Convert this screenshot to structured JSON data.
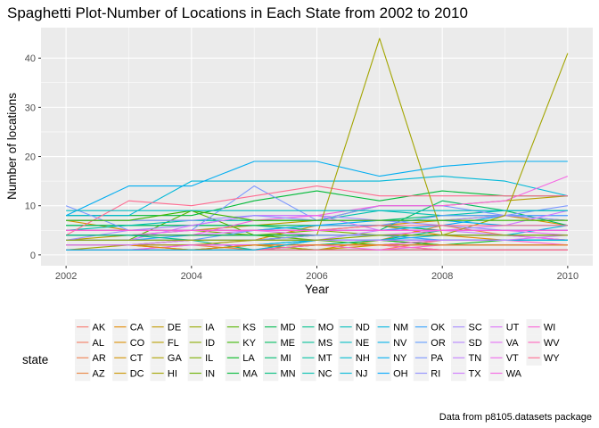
{
  "chart_data": {
    "type": "line",
    "title": "Spaghetti Plot-Number of Locations in Each State from 2002 to 2010",
    "xlabel": "Year",
    "ylabel": "Number of locations",
    "xlim": [
      2001.6,
      2010.4
    ],
    "ylim": [
      -2.2,
      46.2
    ],
    "x_ticks": [
      2002,
      2004,
      2006,
      2008,
      2010
    ],
    "x_tick_labels": [
      "2002",
      "2004",
      "2006",
      "2008",
      "2010"
    ],
    "y_ticks": [
      0,
      10,
      20,
      30,
      40
    ],
    "y_tick_labels": [
      "0",
      "10",
      "20",
      "30",
      "40"
    ],
    "x": [
      2002,
      2003,
      2004,
      2005,
      2006,
      2007,
      2008,
      2009,
      2010
    ],
    "grid": true,
    "legend": {
      "title": "state",
      "position": "bottom",
      "rows": 4
    },
    "series": [
      {
        "name": "AK",
        "color": "#F8766D",
        "values": [
          1,
          1,
          1,
          1,
          1,
          1,
          1,
          1,
          1
        ]
      },
      {
        "name": "AL",
        "color": "#F47A5F",
        "values": [
          1,
          1,
          1,
          1,
          1,
          1,
          3,
          3,
          3
        ]
      },
      {
        "name": "AR",
        "color": "#EF7F4F",
        "values": [
          1,
          1,
          1,
          1,
          2,
          3,
          3,
          3,
          3
        ]
      },
      {
        "name": "AZ",
        "color": "#E9843F",
        "values": [
          2,
          2,
          2,
          1,
          3,
          3,
          6,
          4,
          3
        ]
      },
      {
        "name": "CA",
        "color": "#E38900",
        "values": [
          2,
          2,
          3,
          3,
          6,
          6,
          4,
          3,
          3
        ]
      },
      {
        "name": "CO",
        "color": "#DC8D00",
        "values": [
          4,
          4,
          4,
          4,
          4,
          4,
          4,
          4,
          4
        ]
      },
      {
        "name": "CT",
        "color": "#D49200",
        "values": [
          7,
          5,
          5,
          5,
          5,
          6,
          7,
          8,
          6
        ]
      },
      {
        "name": "DC",
        "color": "#CB9600",
        "values": [
          1,
          1,
          1,
          1,
          1,
          2,
          1,
          1,
          1
        ]
      },
      {
        "name": "DE",
        "color": "#C29A00",
        "values": [
          2,
          2,
          1,
          2,
          1,
          3,
          2,
          2,
          2
        ]
      },
      {
        "name": "FL",
        "color": "#B89E00",
        "values": [
          3,
          4,
          5,
          6,
          7,
          10,
          10,
          11,
          12
        ]
      },
      {
        "name": "GA",
        "color": "#AEA200",
        "values": [
          2,
          2,
          3,
          3,
          4,
          4,
          4,
          4,
          4
        ]
      },
      {
        "name": "HI",
        "color": "#A3A500",
        "values": [
          1,
          1,
          1,
          1,
          1,
          1,
          1,
          1,
          1
        ]
      },
      {
        "name": "IA",
        "color": "#97A900",
        "values": [
          2,
          2,
          2,
          2,
          1,
          1,
          1,
          1,
          1
        ]
      },
      {
        "name": "ID",
        "color": "#8AAB00",
        "values": [
          1,
          1,
          1,
          1,
          1,
          1,
          1,
          1,
          1
        ]
      },
      {
        "name": "IL",
        "color": "#7CAE00",
        "values": [
          5,
          5,
          5,
          4,
          5,
          4,
          4,
          4,
          4
        ]
      },
      {
        "name": "IN",
        "color": "#6BB100",
        "values": [
          4,
          4,
          4,
          4,
          4,
          4,
          4,
          4,
          4
        ]
      },
      {
        "name": "KS",
        "color": "#57B400",
        "values": [
          3,
          3,
          9,
          4,
          3,
          3,
          3,
          3,
          3
        ]
      },
      {
        "name": "KY",
        "color": "#39B600",
        "values": [
          3,
          3,
          3,
          3,
          3,
          2,
          2,
          2,
          2
        ]
      },
      {
        "name": "LA",
        "color": "#00B81D",
        "values": [
          3,
          3,
          3,
          3,
          3,
          3,
          2,
          3,
          3
        ]
      },
      {
        "name": "MA",
        "color": "#00BA38",
        "values": [
          8,
          8,
          8,
          11,
          13,
          11,
          13,
          12,
          12
        ]
      },
      {
        "name": "MD",
        "color": "#00BB4E",
        "values": [
          6,
          6,
          6,
          6,
          6,
          6,
          5,
          5,
          5
        ]
      },
      {
        "name": "ME",
        "color": "#00BD61",
        "values": [
          6,
          6,
          6,
          6,
          5,
          5,
          11,
          9,
          6
        ]
      },
      {
        "name": "MI",
        "color": "#00BE71",
        "values": [
          7,
          7,
          7,
          7,
          7,
          7,
          8,
          8,
          7
        ]
      },
      {
        "name": "MN",
        "color": "#00BF7F",
        "values": [
          3,
          3,
          3,
          3,
          3,
          3,
          5,
          5,
          5
        ]
      },
      {
        "name": "MO",
        "color": "#00C08B",
        "values": [
          3,
          3,
          3,
          1,
          2,
          3,
          3,
          3,
          3
        ]
      },
      {
        "name": "MS",
        "color": "#00C097",
        "values": [
          2,
          2,
          2,
          2,
          2,
          2,
          3,
          3,
          3
        ]
      },
      {
        "name": "MT",
        "color": "#00C1A3",
        "values": [
          1,
          1,
          1,
          1,
          1,
          1,
          1,
          1,
          1
        ]
      },
      {
        "name": "NC",
        "color": "#00C0AF",
        "values": [
          5,
          6,
          7,
          7,
          7,
          9,
          8,
          9,
          9
        ]
      },
      {
        "name": "ND",
        "color": "#00BFBA",
        "values": [
          1,
          1,
          1,
          2,
          2,
          2,
          2,
          2,
          2
        ]
      },
      {
        "name": "NE",
        "color": "#00BDC4",
        "values": [
          2,
          2,
          2,
          2,
          3,
          3,
          3,
          3,
          3
        ]
      },
      {
        "name": "NH",
        "color": "#00BBCE",
        "values": [
          5,
          5,
          5,
          5,
          5,
          5,
          5,
          5,
          5
        ]
      },
      {
        "name": "NJ",
        "color": "#00B8D8",
        "values": [
          8,
          8,
          15,
          15,
          15,
          15,
          16,
          15,
          12
        ]
      },
      {
        "name": "NM",
        "color": "#00B5E1",
        "values": [
          3,
          3,
          3,
          3,
          3,
          3,
          4,
          4,
          6
        ]
      },
      {
        "name": "NV",
        "color": "#00B1E9",
        "values": [
          2,
          2,
          2,
          2,
          3,
          3,
          3,
          3,
          3
        ]
      },
      {
        "name": "NY",
        "color": "#00ADF1",
        "values": [
          8,
          14,
          14,
          19,
          19,
          16,
          18,
          19,
          19
        ]
      },
      {
        "name": "OH",
        "color": "#00A8FF",
        "values": [
          5,
          5,
          5,
          5,
          5,
          5,
          6,
          8,
          8
        ]
      },
      {
        "name": "OK",
        "color": "#35A2FF",
        "values": [
          3,
          3,
          4,
          4,
          4,
          4,
          3,
          3,
          3
        ]
      },
      {
        "name": "OR",
        "color": "#619CFF",
        "values": [
          3,
          3,
          3,
          5,
          6,
          6,
          8,
          8,
          8
        ]
      },
      {
        "name": "PA",
        "color": "#7B96FF",
        "values": [
          10,
          5,
          5,
          14,
          7,
          10,
          10,
          8,
          10
        ]
      },
      {
        "name": "RI",
        "color": "#9190FF",
        "values": [
          2,
          2,
          2,
          2,
          2,
          2,
          2,
          2,
          2
        ]
      },
      {
        "name": "SC",
        "color": "#A58AFF",
        "values": [
          3,
          5,
          6,
          8,
          8,
          7,
          7,
          8,
          7
        ]
      },
      {
        "name": "SD",
        "color": "#B584FF",
        "values": [
          1,
          1,
          2,
          2,
          2,
          2,
          2,
          2,
          2
        ]
      },
      {
        "name": "TN",
        "color": "#C37EFF",
        "values": [
          3,
          3,
          3,
          3,
          3,
          5,
          5,
          4,
          3
        ]
      },
      {
        "name": "TX",
        "color": "#D078FF",
        "values": [
          3,
          3,
          6,
          8,
          8,
          5,
          5,
          6,
          9
        ]
      },
      {
        "name": "UT",
        "color": "#DB72FB",
        "values": [
          4,
          4,
          4,
          5,
          5,
          5,
          5,
          5,
          5
        ]
      },
      {
        "name": "VA",
        "color": "#E56DF5",
        "values": [
          4,
          4,
          5,
          5,
          4,
          4,
          5,
          5,
          4
        ]
      },
      {
        "name": "VT",
        "color": "#EE69ED",
        "values": [
          2,
          2,
          2,
          3,
          4,
          4,
          4,
          4,
          3
        ]
      },
      {
        "name": "WA",
        "color": "#F564E3",
        "values": [
          4,
          4,
          4,
          7,
          8,
          10,
          10,
          11,
          16
        ]
      },
      {
        "name": "WI",
        "color": "#FB61D7",
        "values": [
          2,
          2,
          2,
          2,
          2,
          2,
          3,
          3,
          2
        ]
      },
      {
        "name": "WV",
        "color": "#FF62BC",
        "values": [
          1,
          1,
          1,
          1,
          2,
          2,
          1,
          1,
          1
        ]
      },
      {
        "name": "WY",
        "color": "#FF6C91",
        "values": [
          1,
          1,
          1,
          1,
          1,
          1,
          1,
          1,
          1
        ]
      },
      {
        "name": "",
        "color": "#FF6C91",
        "values": [
          4,
          11,
          10,
          12,
          14,
          12,
          12,
          12,
          12
        ]
      },
      {
        "name": "",
        "color": "#A3A500",
        "values": [
          1,
          2,
          2,
          3,
          4,
          44,
          4,
          8,
          41
        ]
      },
      {
        "name": "",
        "color": "#00ADF1",
        "values": [
          5,
          5,
          5,
          5,
          6,
          7,
          7,
          6,
          6
        ]
      },
      {
        "name": "",
        "color": "#F564E3",
        "values": [
          1,
          1,
          2,
          2,
          2,
          1,
          2,
          2,
          2
        ]
      },
      {
        "name": "",
        "color": "#00BA38",
        "values": [
          4,
          4,
          4,
          4,
          4,
          4,
          4,
          4,
          4
        ]
      },
      {
        "name": "",
        "color": "#E38900",
        "values": [
          2,
          2,
          1,
          2,
          2,
          2,
          2,
          2,
          2
        ]
      },
      {
        "name": "",
        "color": "#9190FF",
        "values": [
          7,
          7,
          7,
          8,
          7,
          7,
          6,
          5,
          5
        ]
      },
      {
        "name": "",
        "color": "#FF6C91",
        "values": [
          5,
          5,
          5,
          5,
          5,
          6,
          6,
          6,
          6
        ]
      },
      {
        "name": "",
        "color": "#39B600",
        "values": [
          7,
          7,
          9,
          7,
          7,
          7,
          7,
          7,
          7
        ]
      },
      {
        "name": "",
        "color": "#00C08B",
        "values": [
          4,
          4,
          3,
          3,
          3,
          3,
          3,
          3,
          3
        ]
      },
      {
        "name": "",
        "color": "#7B96FF",
        "values": [
          3,
          3,
          3,
          3,
          4,
          4,
          4,
          4,
          4
        ]
      },
      {
        "name": "",
        "color": "#FB61D7",
        "values": [
          5,
          5,
          5,
          5,
          5,
          5,
          5,
          5,
          5
        ]
      },
      {
        "name": "",
        "color": "#00B5E1",
        "values": [
          1,
          1,
          1,
          1,
          3,
          3,
          3,
          3,
          3
        ]
      },
      {
        "name": "",
        "color": "#D078FF",
        "values": [
          2,
          2,
          3,
          3,
          3,
          3,
          3,
          3,
          4
        ]
      },
      {
        "name": "",
        "color": "#8AAB00",
        "values": [
          3,
          3,
          3,
          3,
          3,
          4,
          4,
          4,
          4
        ]
      },
      {
        "name": "",
        "color": "#00BDC4",
        "values": [
          9,
          9,
          9,
          9,
          9,
          9,
          9,
          9,
          9
        ]
      }
    ],
    "caption": "Data from p8105.datasets package"
  }
}
